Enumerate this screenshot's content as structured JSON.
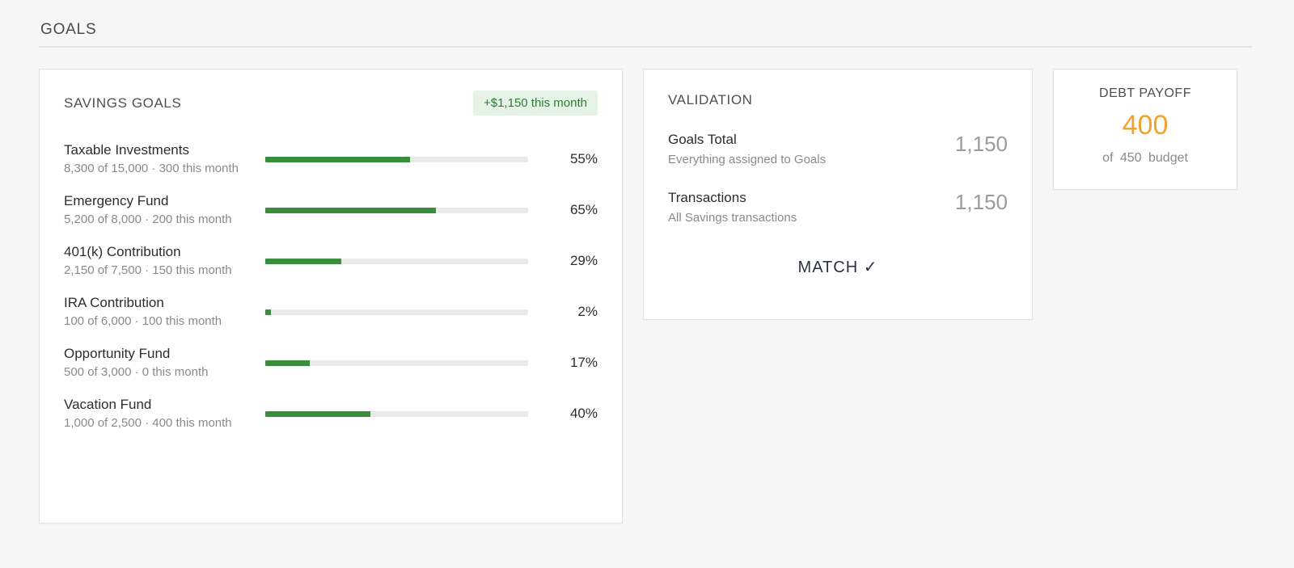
{
  "page": {
    "title": "GOALS"
  },
  "savings": {
    "title": "SAVINGS GOALS",
    "badge": "+$1,150 this month",
    "goals": [
      {
        "name": "Taxable Investments",
        "detail": "8,300 of 15,000 · 300 this month",
        "percent": 55,
        "percent_label": "55%"
      },
      {
        "name": "Emergency Fund",
        "detail": "5,200 of 8,000 · 200 this month",
        "percent": 65,
        "percent_label": "65%"
      },
      {
        "name": "401(k) Contribution",
        "detail": "2,150 of 7,500 · 150 this month",
        "percent": 29,
        "percent_label": "29%"
      },
      {
        "name": "IRA Contribution",
        "detail": "100 of 6,000 · 100 this month",
        "percent": 2,
        "percent_label": "2%"
      },
      {
        "name": "Opportunity Fund",
        "detail": "500 of 3,000 · 0 this month",
        "percent": 17,
        "percent_label": "17%"
      },
      {
        "name": "Vacation Fund",
        "detail": "1,000 of 2,500 · 400 this month",
        "percent": 40,
        "percent_label": "40%"
      }
    ]
  },
  "validation": {
    "title": "VALIDATION",
    "rows": [
      {
        "label": "Goals Total",
        "sub": "Everything assigned to Goals",
        "value": "1,150"
      },
      {
        "label": "Transactions",
        "sub": "All Savings transactions",
        "value": "1,150"
      }
    ],
    "status": "MATCH ✓"
  },
  "debt": {
    "title": "DEBT PAYOFF",
    "value": "400",
    "sub": "of 450 budget"
  },
  "colors": {
    "accent-green": "#388E3C",
    "badge-bg": "#E5F3E7",
    "badge-text": "#2E7D32",
    "bar-track": "#EAEAEA",
    "value-gray": "#9B9B9B",
    "debt-orange": "#F0A330",
    "match-navy": "#2C3144"
  }
}
